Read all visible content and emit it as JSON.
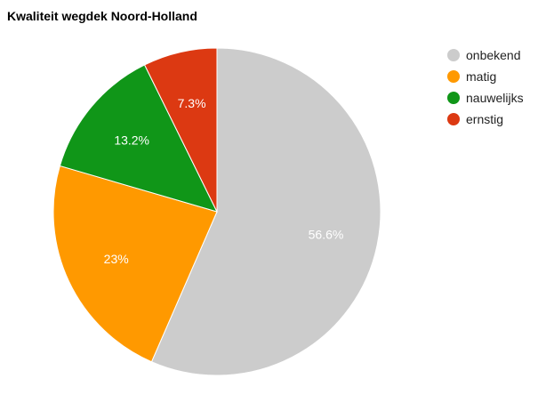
{
  "chart_data": {
    "type": "pie",
    "title": "Kwaliteit wegdek Noord-Holland",
    "categories": [
      "onbekend",
      "matig",
      "nauwelijks",
      "ernstig"
    ],
    "values": [
      56.6,
      23,
      13.2,
      7.3
    ],
    "value_labels": [
      "56.6%",
      "23%",
      "13.2%",
      "7.3%"
    ],
    "colors": [
      "#cccccc",
      "#ff9900",
      "#109618",
      "#dc3912"
    ],
    "legend_position": "right",
    "start_angle": "12 o'clock, clockwise"
  }
}
